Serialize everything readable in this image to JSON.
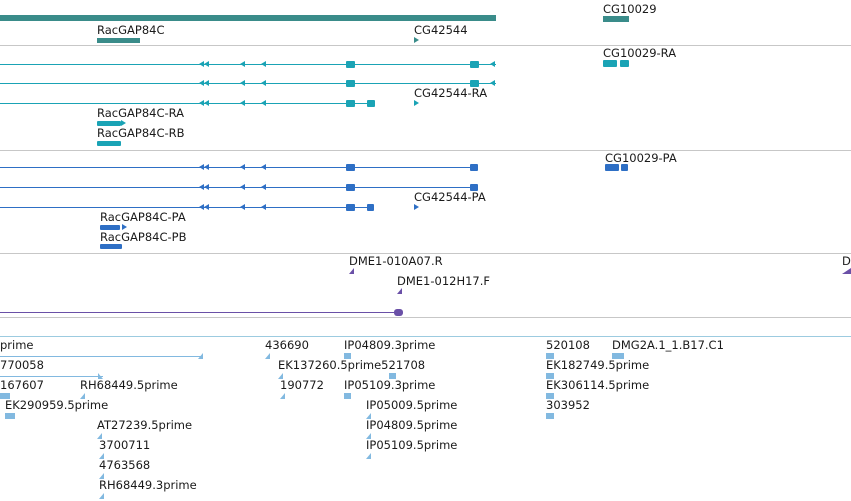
{
  "colors": {
    "gene": "#3a8c8a",
    "transcript_rna": "#1aa3b5",
    "protein": "#2e6fc5",
    "clone": "#6a50a7",
    "est": "#82b9e0",
    "separator": "#c7c7c7"
  },
  "genes": {
    "labels": [
      "RacGAP84C",
      "CG42544",
      "CG10029"
    ]
  },
  "transcripts": {
    "labels": [
      "CG10029-RA",
      "CG42544-RA",
      "RacGAP84C-RA",
      "RacGAP84C-RB"
    ]
  },
  "proteins": {
    "labels": [
      "CG10029-PA",
      "CG42544-PA",
      "RacGAP84C-PA",
      "RacGAP84C-PB"
    ]
  },
  "clones": {
    "labels": [
      "DME1-010A07.R",
      "DME1-012H17.F",
      "D"
    ]
  },
  "ests": {
    "labels": [
      "prime",
      "770058",
      "167607",
      "RH68449.5prime",
      "EK290959.5prime",
      "AT27239.5prime",
      "3700711",
      "4763568",
      "RH68449.3prime",
      "436690",
      "EK137260.5prime521708",
      "190772",
      "IP04809.3prime",
      "IP05109.3prime",
      "IP05009.5prime",
      "IP04809.5prime",
      "IP05109.5prime",
      "520108",
      "DMG2A.1_1.B17.C1",
      "EK182749.5prime",
      "EK306114.5prime",
      "303952"
    ]
  }
}
